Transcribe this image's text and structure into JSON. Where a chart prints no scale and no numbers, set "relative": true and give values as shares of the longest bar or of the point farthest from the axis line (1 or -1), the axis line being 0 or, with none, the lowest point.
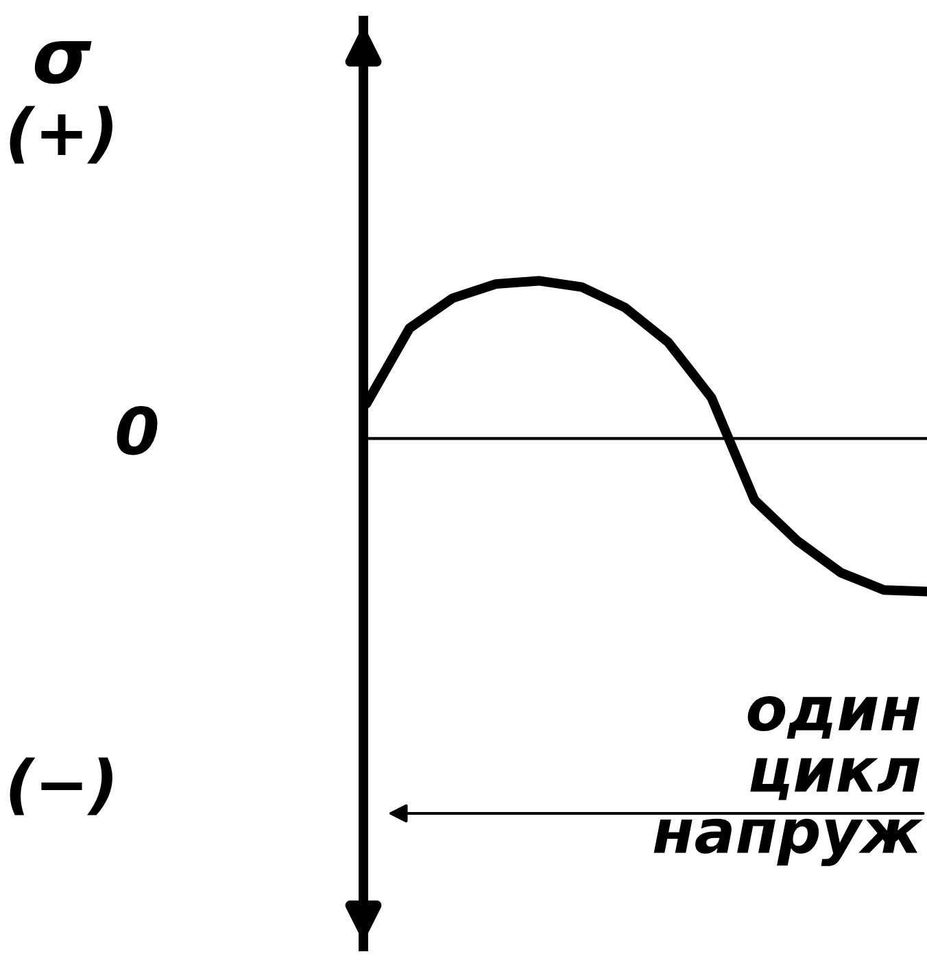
{
  "chart_data": {
    "type": "line",
    "relative": true,
    "ylabel": "σ",
    "categories": [
      null,
      null,
      null,
      null,
      null,
      null,
      null,
      null,
      null,
      null,
      null,
      null,
      null,
      null
    ],
    "series": [
      {
        "color": "#000000",
        "values": [
          0.22,
          0.7,
          0.89,
          0.98,
          1.0,
          0.96,
          0.83,
          0.61,
          0.26,
          -0.39,
          -0.65,
          -0.85,
          -0.96,
          -0.97
        ]
      }
    ],
    "annotations": [
      "(+)",
      "0",
      "(−)",
      "один цикл напруж"
    ],
    "grid": false,
    "legend": false,
    "marker": "none",
    "line_style": "solid"
  }
}
